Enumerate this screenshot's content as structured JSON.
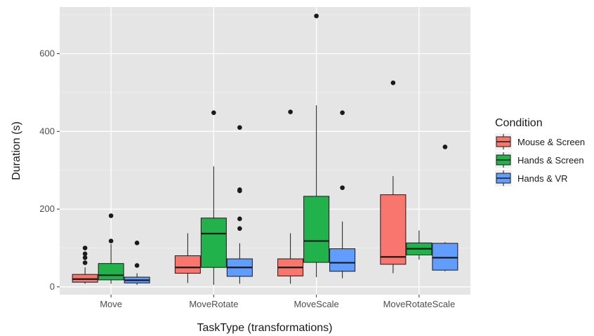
{
  "chart_data": {
    "type": "boxplot",
    "xlabel": "TaskType (transformations)",
    "ylabel": "Duration (s)",
    "ylim": [
      -20,
      720
    ],
    "yticks": [
      0,
      200,
      400,
      600
    ],
    "grid": true,
    "legend_position": "right",
    "legend": {
      "title": "Condition",
      "entries": [
        "Mouse & Screen",
        "Hands & Screen",
        "Hands & VR"
      ]
    },
    "categories": [
      "Move",
      "MoveRotate",
      "MoveScale",
      "MoveRotateScale"
    ],
    "series": [
      {
        "name": "Mouse & Screen",
        "color": "#f8766d",
        "boxes": [
          {
            "category": "Move",
            "min": 8,
            "q1": 12,
            "median": 20,
            "q3": 32,
            "max": 50,
            "outliers": [
              62,
              75,
              85,
              100
            ]
          },
          {
            "category": "MoveRotate",
            "min": 10,
            "q1": 35,
            "median": 50,
            "q3": 80,
            "max": 138,
            "outliers": []
          },
          {
            "category": "MoveScale",
            "min": 8,
            "q1": 28,
            "median": 50,
            "q3": 72,
            "max": 138,
            "outliers": [
              450
            ]
          },
          {
            "category": "MoveRotateScale",
            "min": 35,
            "q1": 58,
            "median": 77,
            "q3": 237,
            "max": 285,
            "outliers": [
              525
            ]
          }
        ]
      },
      {
        "name": "Hands & Screen",
        "color": "#22b24c",
        "boxes": [
          {
            "category": "Move",
            "min": 8,
            "q1": 18,
            "median": 30,
            "q3": 60,
            "max": 110,
            "outliers": [
              118,
              183
            ]
          },
          {
            "category": "MoveRotate",
            "min": 5,
            "q1": 50,
            "median": 137,
            "q3": 177,
            "max": 310,
            "outliers": [
              448
            ]
          },
          {
            "category": "MoveScale",
            "min": 25,
            "q1": 63,
            "median": 118,
            "q3": 233,
            "max": 467,
            "outliers": [
              697
            ]
          },
          {
            "category": "MoveRotateScale",
            "min": 70,
            "q1": 82,
            "median": 98,
            "q3": 113,
            "max": 145,
            "outliers": []
          }
        ]
      },
      {
        "name": "Hands & VR",
        "color": "#619cff",
        "boxes": [
          {
            "category": "Move",
            "min": 5,
            "q1": 10,
            "median": 17,
            "q3": 25,
            "max": 35,
            "outliers": [
              55,
              113
            ]
          },
          {
            "category": "MoveRotate",
            "min": 8,
            "q1": 27,
            "median": 50,
            "q3": 72,
            "max": 112,
            "outliers": [
              150,
              175,
              247,
              250,
              410
            ]
          },
          {
            "category": "MoveScale",
            "min": 22,
            "q1": 40,
            "median": 62,
            "q3": 98,
            "max": 168,
            "outliers": [
              255,
              448
            ]
          },
          {
            "category": "MoveRotateScale",
            "min": 40,
            "q1": 43,
            "median": 75,
            "q3": 112,
            "max": 115,
            "outliers": [
              360
            ]
          }
        ]
      }
    ]
  }
}
